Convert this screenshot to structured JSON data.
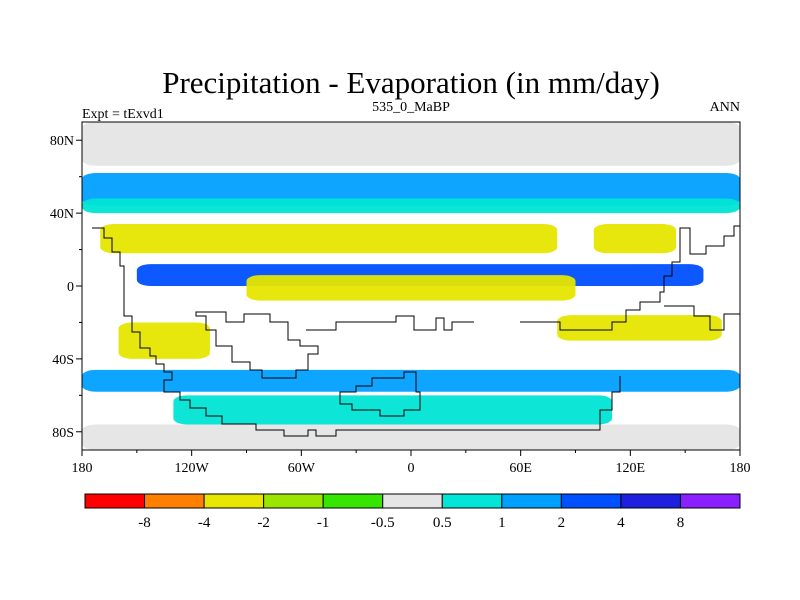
{
  "chart_data": {
    "type": "contour-map",
    "title": "Precipitation - Evaporation (in mm/day)",
    "subtitle_left": "Expt = tExvd1",
    "subtitle_center": "535_0_MaBP",
    "subtitle_right": "ANN",
    "x_range": [
      -180,
      180
    ],
    "y_range": [
      -90,
      90
    ],
    "x_ticks": [
      {
        "value": -180,
        "label": "180"
      },
      {
        "value": -120,
        "label": "120W"
      },
      {
        "value": -60,
        "label": "60W"
      },
      {
        "value": 0,
        "label": "0"
      },
      {
        "value": 60,
        "label": "60E"
      },
      {
        "value": 120,
        "label": "120E"
      },
      {
        "value": 180,
        "label": "180"
      }
    ],
    "y_ticks": [
      {
        "value": 80,
        "label": "80N"
      },
      {
        "value": 40,
        "label": "40N"
      },
      {
        "value": 0,
        "label": "0"
      },
      {
        "value": -40,
        "label": "40S"
      },
      {
        "value": -80,
        "label": "80S"
      }
    ],
    "colorbar": {
      "colors": [
        "#ff0000",
        "#ff8000",
        "#e6e600",
        "#9ae600",
        "#36e600",
        "#e5e5e5",
        "#00e5d5",
        "#00a0ff",
        "#0050ff",
        "#1f1fe0",
        "#8a20ff"
      ],
      "labels": [
        "-8",
        "-4",
        "-2",
        "-1",
        "-0.5",
        "0.5",
        "1",
        "2",
        "4",
        "8"
      ]
    },
    "bands": [
      {
        "name": "polar-north",
        "color_index": 5,
        "lat": [
          66,
          90
        ],
        "lon": [
          -180,
          180
        ]
      },
      {
        "name": "north-subpolar-wet",
        "color_index": 7,
        "lat": [
          44,
          62
        ],
        "lon": [
          -180,
          180
        ]
      },
      {
        "name": "north-subpolar-moist",
        "color_index": 6,
        "lat": [
          40,
          48
        ],
        "lon": [
          -180,
          180
        ]
      },
      {
        "name": "north-subtropic-dry",
        "color_index": 2,
        "lat": [
          18,
          34
        ],
        "lon": [
          -170,
          80
        ]
      },
      {
        "name": "north-subtropic-dry-east",
        "color_index": 2,
        "lat": [
          18,
          34
        ],
        "lon": [
          100,
          145
        ]
      },
      {
        "name": "itcz-wet",
        "color_index": 8,
        "lat": [
          0,
          12
        ],
        "lon": [
          -150,
          160
        ]
      },
      {
        "name": "equatorial-dry",
        "color_index": 2,
        "lat": [
          -8,
          6
        ],
        "lon": [
          -90,
          90
        ]
      },
      {
        "name": "south-subtropic-dry",
        "color_index": 2,
        "lat": [
          -40,
          -20
        ],
        "lon": [
          -160,
          -110
        ]
      },
      {
        "name": "south-subtropic-dry-east",
        "color_index": 2,
        "lat": [
          -30,
          -16
        ],
        "lon": [
          80,
          170
        ]
      },
      {
        "name": "southern-ocean-wet",
        "color_index": 7,
        "lat": [
          -58,
          -46
        ],
        "lon": [
          -180,
          180
        ]
      },
      {
        "name": "southern-ocean-moist",
        "color_index": 6,
        "lat": [
          -76,
          -60
        ],
        "lon": [
          -130,
          110
        ]
      },
      {
        "name": "polar-south",
        "color_index": 5,
        "lat": [
          -90,
          -76
        ],
        "lon": [
          -180,
          180
        ]
      }
    ]
  }
}
